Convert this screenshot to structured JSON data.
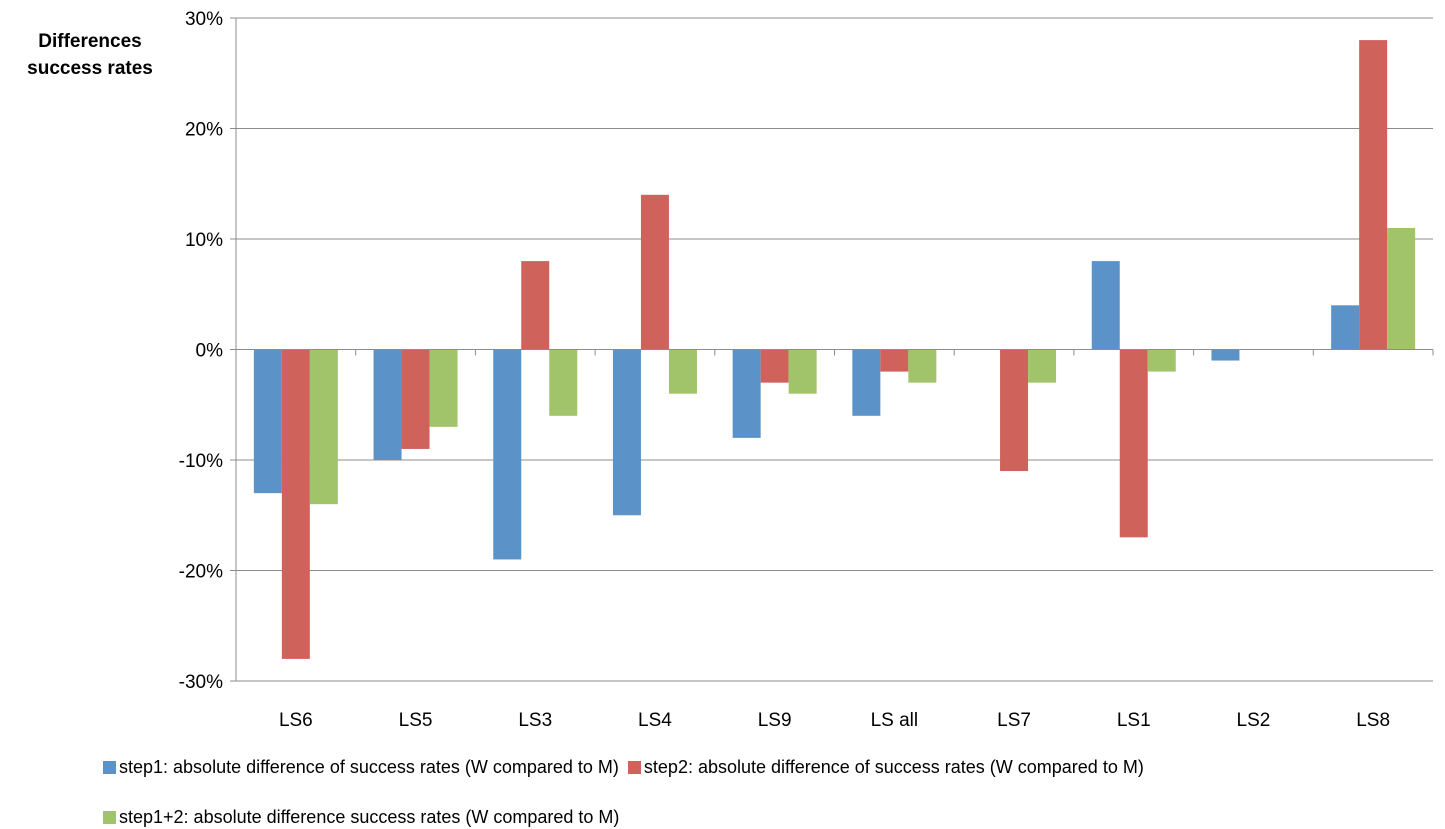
{
  "chart_data": {
    "type": "bar",
    "ylabel": "Differences success rates",
    "ylabel_lines": [
      "Differences",
      "success rates"
    ],
    "xlabel": "",
    "categories": [
      "LS6",
      "LS5",
      "LS3",
      "LS4",
      "LS9",
      "LS all",
      "LS7",
      "LS1",
      "LS2",
      "LS8"
    ],
    "series": [
      {
        "name": "step1: absolute difference of  success rates (W compared to M)",
        "color": "#5B93C9",
        "values": [
          -13,
          -10,
          -19,
          -15,
          -8,
          -6,
          0,
          8,
          -1,
          4
        ]
      },
      {
        "name": "step2: absolute difference  of success rates (W compared to M)",
        "color": "#D0625C",
        "values": [
          -28,
          -9,
          8,
          14,
          -3,
          -2,
          -11,
          -17,
          0,
          28
        ]
      },
      {
        "name": "step1+2: absolute difference  success rates (W compared to M)",
        "color": "#A1C46A",
        "values": [
          -14,
          -7,
          -6,
          -4,
          -4,
          -3,
          -3,
          -2,
          0,
          11
        ]
      }
    ],
    "ylim": [
      -30,
      30
    ],
    "yticks": [
      -30,
      -20,
      -10,
      0,
      10,
      20,
      30
    ],
    "ytick_labels": [
      "-30%",
      "-20%",
      "-10%",
      "0%",
      "10%",
      "20%",
      "30%"
    ],
    "grid": true,
    "legend_position": "bottom"
  }
}
